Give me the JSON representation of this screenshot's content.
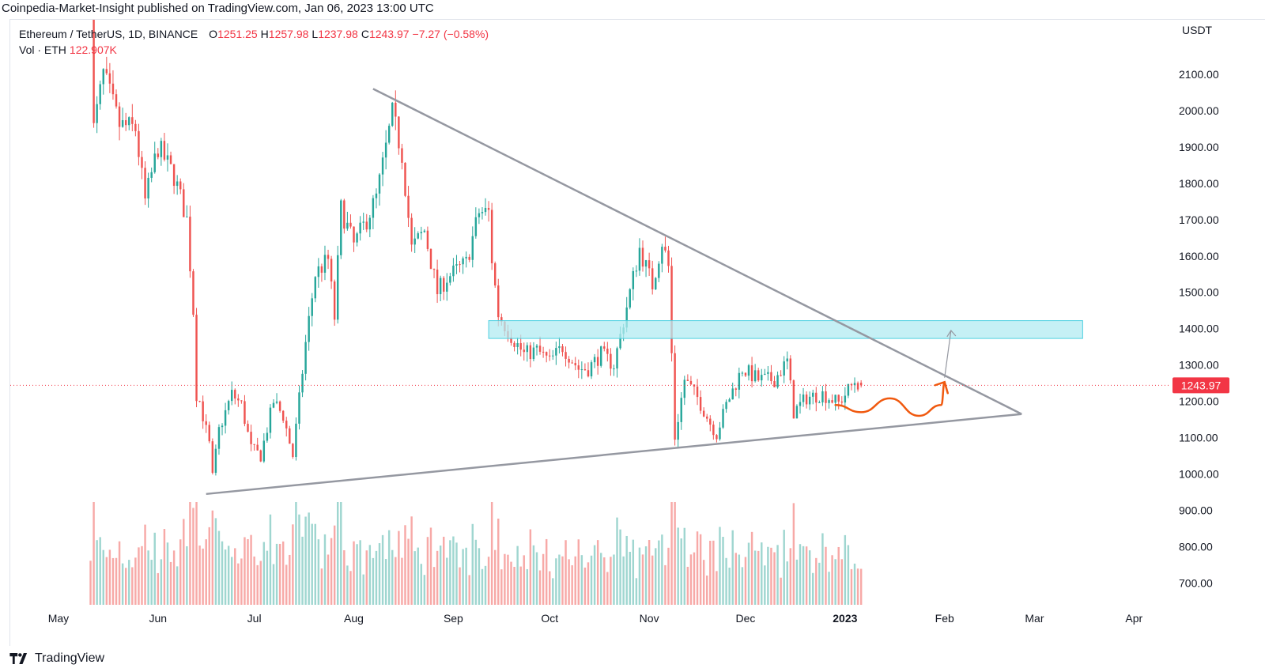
{
  "header": {
    "published_line": "Coinpedia-Market-Insight published on TradingView.com, Jan 06, 2023 13:00 UTC"
  },
  "legend": {
    "symbol": "Ethereum / TetherUS, 1D, BINANCE",
    "open_label": "O",
    "open": "1251.25",
    "high_label": "H",
    "high": "1257.98",
    "low_label": "L",
    "low": "1237.98",
    "close_label": "C",
    "close": "1243.97",
    "change": "−7.27 (−0.58%)",
    "volume_label": "Vol · ETH",
    "volume": "122.907K"
  },
  "footer": {
    "brand": "TradingView"
  },
  "colors": {
    "up": "#26a69a",
    "down": "#ef5350",
    "vol_up": "#9fd6d0",
    "vol_down": "#f7a9a7",
    "trendline": "#9598a1",
    "zone": "#b2ebf2",
    "zone_border": "#4dd0e1",
    "projection": "#f0590f",
    "price_line": "#f23645",
    "breakout_arrow": "#9598a1"
  },
  "chart_data": {
    "type": "candlestick",
    "currency": "USDT",
    "y_ticks": [
      "700.00",
      "800.00",
      "900.00",
      "1000.00",
      "1100.00",
      "1200.00",
      "1300.00",
      "1400.00",
      "1500.00",
      "1600.00",
      "1700.00",
      "1800.00",
      "1900.00",
      "2000.00",
      "2100.00"
    ],
    "ylim": [
      640,
      2250
    ],
    "x_ticks": [
      {
        "label": "May",
        "date": "2022-05-01"
      },
      {
        "label": "Jun",
        "date": "2022-06-01"
      },
      {
        "label": "Jul",
        "date": "2022-07-01"
      },
      {
        "label": "Aug",
        "date": "2022-08-01"
      },
      {
        "label": "Sep",
        "date": "2022-09-01"
      },
      {
        "label": "Oct",
        "date": "2022-10-01"
      },
      {
        "label": "Nov",
        "date": "2022-11-01"
      },
      {
        "label": "Dec",
        "date": "2022-12-01"
      },
      {
        "label": "2023",
        "date": "2023-01-01",
        "bold": true
      },
      {
        "label": "Feb",
        "date": "2023-02-01"
      },
      {
        "label": "Mar",
        "date": "2023-03-01"
      },
      {
        "label": "Apr",
        "date": "2023-04-01"
      }
    ],
    "x_range": [
      "2022-04-16",
      "2023-04-12"
    ],
    "close_path": [
      [
        "2022-05-11",
        2450
      ],
      [
        "2022-05-12",
        1950
      ],
      [
        "2022-05-15",
        2100
      ],
      [
        "2022-05-20",
        1960
      ],
      [
        "2022-05-25",
        1950
      ],
      [
        "2022-05-28",
        1750
      ],
      [
        "2022-06-01",
        1900
      ],
      [
        "2022-06-06",
        1820
      ],
      [
        "2022-06-10",
        1700
      ],
      [
        "2022-06-12",
        1450
      ],
      [
        "2022-06-13",
        1220
      ],
      [
        "2022-06-14",
        1200
      ],
      [
        "2022-06-17",
        1080
      ],
      [
        "2022-06-18",
        990
      ],
      [
        "2022-06-20",
        1120
      ],
      [
        "2022-06-24",
        1220
      ],
      [
        "2022-06-27",
        1190
      ],
      [
        "2022-06-30",
        1070
      ],
      [
        "2022-07-03",
        1050
      ],
      [
        "2022-07-07",
        1200
      ],
      [
        "2022-07-10",
        1160
      ],
      [
        "2022-07-13",
        1050
      ],
      [
        "2022-07-17",
        1360
      ],
      [
        "2022-07-20",
        1550
      ],
      [
        "2022-07-24",
        1590
      ],
      [
        "2022-07-26",
        1430
      ],
      [
        "2022-07-28",
        1730
      ],
      [
        "2022-08-01",
        1630
      ],
      [
        "2022-08-05",
        1700
      ],
      [
        "2022-08-08",
        1760
      ],
      [
        "2022-08-10",
        1850
      ],
      [
        "2022-08-13",
        1990
      ],
      [
        "2022-08-16",
        1880
      ],
      [
        "2022-08-19",
        1620
      ],
      [
        "2022-08-23",
        1670
      ],
      [
        "2022-08-27",
        1500
      ],
      [
        "2022-08-30",
        1540
      ],
      [
        "2022-09-05",
        1580
      ],
      [
        "2022-09-09",
        1720
      ],
      [
        "2022-09-12",
        1720
      ],
      [
        "2022-09-13",
        1590
      ],
      [
        "2022-09-15",
        1440
      ],
      [
        "2022-09-19",
        1380
      ],
      [
        "2022-09-23",
        1330
      ],
      [
        "2022-09-27",
        1340
      ],
      [
        "2022-10-01",
        1310
      ],
      [
        "2022-10-05",
        1350
      ],
      [
        "2022-10-10",
        1290
      ],
      [
        "2022-10-13",
        1290
      ],
      [
        "2022-10-17",
        1330
      ],
      [
        "2022-10-21",
        1300
      ],
      [
        "2022-10-25",
        1460
      ],
      [
        "2022-10-29",
        1620
      ],
      [
        "2022-11-02",
        1520
      ],
      [
        "2022-11-05",
        1640
      ],
      [
        "2022-11-07",
        1570
      ],
      [
        "2022-11-08",
        1330
      ],
      [
        "2022-11-09",
        1100
      ],
      [
        "2022-11-12",
        1260
      ],
      [
        "2022-11-16",
        1210
      ],
      [
        "2022-11-20",
        1140
      ],
      [
        "2022-11-22",
        1110
      ],
      [
        "2022-11-25",
        1190
      ],
      [
        "2022-11-30",
        1290
      ],
      [
        "2022-12-05",
        1260
      ],
      [
        "2022-12-10",
        1260
      ],
      [
        "2022-12-14",
        1310
      ],
      [
        "2022-12-16",
        1170
      ],
      [
        "2022-12-20",
        1210
      ],
      [
        "2022-12-25",
        1220
      ],
      [
        "2022-12-30",
        1195
      ],
      [
        "2023-01-04",
        1255
      ],
      [
        "2023-01-06",
        1244
      ]
    ],
    "last_price": 1243.97,
    "annotations": {
      "triangle_upper": [
        [
          "2022-08-07",
          2060
        ],
        [
          "2023-02-25",
          1165
        ]
      ],
      "triangle_lower": [
        [
          "2022-06-16",
          945
        ],
        [
          "2023-02-25",
          1165
        ]
      ],
      "resistance_zone": {
        "from": "2022-09-12",
        "to": "2023-03-16",
        "low": 1373,
        "high": 1422
      },
      "breakout_arrow": [
        [
          "2023-02-01",
          1265
        ],
        [
          "2023-02-03",
          1395
        ]
      ],
      "projection_path": [
        [
          "2022-12-29",
          1190
        ],
        [
          "2023-01-06",
          1170
        ],
        [
          "2023-01-15",
          1208
        ],
        [
          "2023-01-24",
          1160
        ],
        [
          "2023-01-31",
          1190
        ],
        [
          "2023-02-01",
          1253
        ]
      ]
    }
  }
}
